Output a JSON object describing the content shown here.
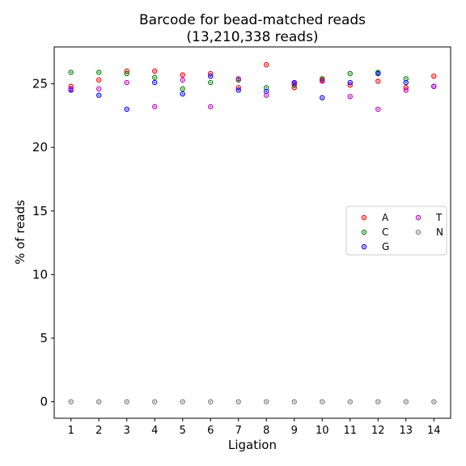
{
  "chart_data": {
    "type": "scatter",
    "title": "Barcode for bead-matched reads",
    "subtitle": "(13,210,338 reads)",
    "xlabel": "Ligation",
    "ylabel": "% of reads",
    "x": [
      1,
      2,
      3,
      4,
      5,
      6,
      7,
      8,
      9,
      10,
      11,
      12,
      13,
      14
    ],
    "xlim": [
      0.4,
      14.6
    ],
    "ylim": [
      -1.3,
      27.9
    ],
    "xticks": [
      "1",
      "2",
      "3",
      "4",
      "5",
      "6",
      "7",
      "8",
      "9",
      "10",
      "11",
      "12",
      "13",
      "14"
    ],
    "yticks": [
      "0",
      "5",
      "10",
      "15",
      "20",
      "25"
    ],
    "grid": false,
    "legend_position": "center-right",
    "series": [
      {
        "name": "A",
        "color": "#ff0000",
        "values": [
          24.8,
          25.3,
          26.0,
          26.0,
          25.7,
          25.8,
          24.7,
          26.5,
          24.7,
          25.3,
          24.9,
          25.2,
          24.7,
          25.6
        ]
      },
      {
        "name": "C",
        "color": "#008000",
        "values": [
          25.9,
          25.9,
          25.8,
          25.5,
          24.6,
          25.1,
          25.3,
          24.7,
          24.9,
          25.4,
          25.8,
          25.9,
          25.4,
          24.8
        ]
      },
      {
        "name": "G",
        "color": "#0000ff",
        "values": [
          24.5,
          24.1,
          23.0,
          25.1,
          24.2,
          25.6,
          24.5,
          24.4,
          25.1,
          23.9,
          25.1,
          25.8,
          25.1,
          24.8
        ]
      },
      {
        "name": "T",
        "color": "#bf00bf",
        "values": [
          24.6,
          24.6,
          25.1,
          23.2,
          25.3,
          23.2,
          25.4,
          24.1,
          25.0,
          25.2,
          24.0,
          23.0,
          24.5,
          24.8
        ]
      },
      {
        "name": "N",
        "color": "#808080",
        "values": [
          0.0,
          0.0,
          0.0,
          0.0,
          0.0,
          0.0,
          0.0,
          0.0,
          0.0,
          0.0,
          0.0,
          0.0,
          0.0,
          0.0
        ]
      }
    ]
  }
}
